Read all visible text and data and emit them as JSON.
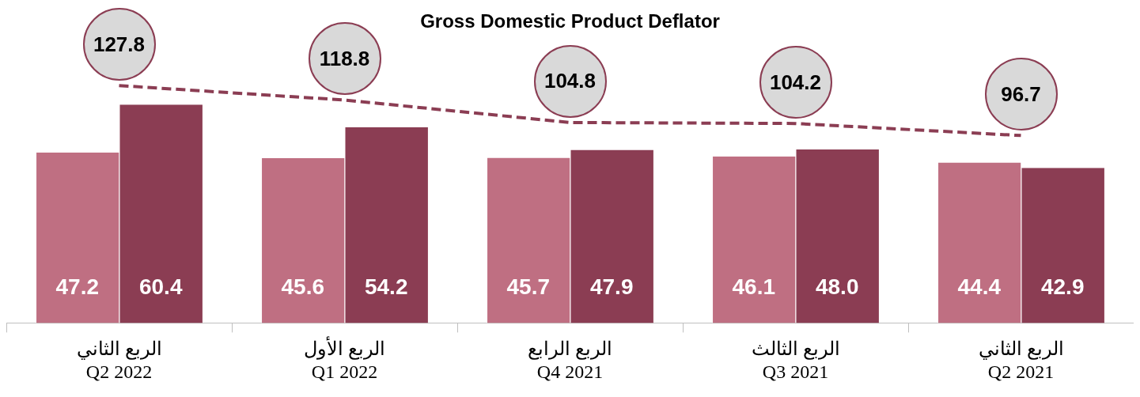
{
  "chart_data": {
    "type": "bar",
    "title": "Gross Domestic Product Deflator",
    "categories": [
      "الربع الثاني\nQ2 2022",
      "الربع الأول\nQ1 2022",
      "الربع الرابع\nQ4 2021",
      "الربع الثالث\nQ3 2021",
      "الربع الثاني\nQ2 2021"
    ],
    "series": [
      {
        "color": "#bf6f82",
        "values": [
          47.2,
          45.6,
          45.7,
          46.1,
          44.4
        ],
        "value_labels": [
          "47.2",
          "45.6",
          "45.7",
          "46.1",
          "44.4"
        ]
      },
      {
        "color": "#8b3d53",
        "values": [
          60.4,
          54.2,
          47.9,
          48.0,
          42.9
        ],
        "value_labels": [
          "60.4",
          "54.2",
          "47.9",
          "48.0",
          "42.9"
        ]
      },
      {
        "type": "line",
        "axis": "y2",
        "color": "#8b3d53",
        "line_style": "dashed",
        "values": [
          127.8,
          118.8,
          104.8,
          104.2,
          96.7
        ],
        "value_labels": [
          "127.8",
          "118.8",
          "104.8",
          "104.2",
          "96.7"
        ]
      }
    ],
    "tick_labels": "x",
    "grid": false,
    "legend": false
  }
}
